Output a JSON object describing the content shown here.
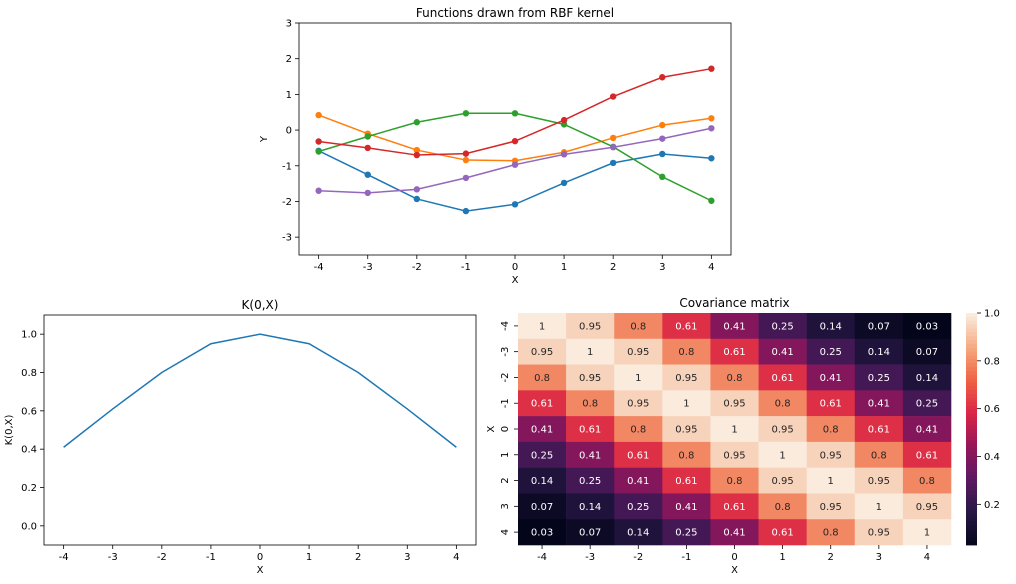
{
  "chart_data": [
    {
      "type": "line",
      "title": "Functions drawn from RBF kernel",
      "xlabel": "X",
      "ylabel": "Y",
      "xlim": [
        -4.4,
        4.4
      ],
      "ylim": [
        -3.5,
        3.0
      ],
      "xticks": [
        -4,
        -3,
        -2,
        -1,
        0,
        1,
        2,
        3,
        4
      ],
      "yticks": [
        -3,
        -2,
        -1,
        0,
        1,
        2,
        3
      ],
      "x": [
        -4,
        -3,
        -2,
        -1,
        0,
        1,
        2,
        3,
        4
      ],
      "markers": true,
      "series": [
        {
          "color": "#1f77b4",
          "values": [
            -0.58,
            -1.25,
            -1.93,
            -2.27,
            -2.08,
            -1.48,
            -0.92,
            -0.67,
            -0.79
          ]
        },
        {
          "color": "#ff7f0e",
          "values": [
            0.42,
            -0.1,
            -0.56,
            -0.84,
            -0.86,
            -0.62,
            -0.22,
            0.14,
            0.33
          ]
        },
        {
          "color": "#2ca02c",
          "values": [
            -0.6,
            -0.18,
            0.22,
            0.47,
            0.47,
            0.16,
            -0.47,
            -1.31,
            -1.98
          ]
        },
        {
          "color": "#d62728",
          "values": [
            -0.32,
            -0.5,
            -0.7,
            -0.66,
            -0.31,
            0.28,
            0.94,
            1.48,
            1.72
          ]
        },
        {
          "color": "#9467bd",
          "values": [
            -1.7,
            -1.76,
            -1.66,
            -1.34,
            -0.97,
            -0.68,
            -0.48,
            -0.24,
            0.05
          ]
        }
      ]
    },
    {
      "type": "line",
      "title": "K(0,X)",
      "xlabel": "X",
      "ylabel": "K(0,X)",
      "xlim": [
        -4.4,
        4.4
      ],
      "ylim": [
        -0.1,
        1.1
      ],
      "xticks": [
        -4,
        -3,
        -2,
        -1,
        0,
        1,
        2,
        3,
        4
      ],
      "yticks": [
        0.0,
        0.2,
        0.4,
        0.6,
        0.8,
        1.0
      ],
      "ytick_labels": [
        "0.0",
        "0.2",
        "0.4",
        "0.6",
        "0.8",
        "1.0"
      ],
      "x": [
        -4,
        -3,
        -2,
        -1,
        0,
        1,
        2,
        3,
        4
      ],
      "series": [
        {
          "color": "#1f77b4",
          "values": [
            0.41,
            0.61,
            0.8,
            0.95,
            1.0,
            0.95,
            0.8,
            0.61,
            0.41
          ]
        }
      ]
    },
    {
      "type": "heatmap",
      "title": "Covariance matrix",
      "xlabel": "X",
      "ylabel": "X",
      "x_categories": [
        "-4",
        "-3",
        "-2",
        "-1",
        "0",
        "1",
        "2",
        "3",
        "4"
      ],
      "y_categories": [
        "-4",
        "-3",
        "-2",
        "-1",
        "0",
        "1",
        "2",
        "3",
        "4"
      ],
      "colormap": "rocket",
      "colorbar_range": [
        0.03,
        1.0
      ],
      "colorbar_ticks": [
        0.2,
        0.4,
        0.6,
        0.8,
        1.0
      ],
      "colorbar_tick_labels": [
        "0.2",
        "0.4",
        "0.6",
        "0.8",
        "1.0"
      ],
      "cell_labels": [
        "1",
        "0.95",
        "0.8",
        "0.61",
        "0.41",
        "0.25",
        "0.14",
        "0.07",
        "0.03"
      ],
      "values": [
        [
          1,
          0.95,
          0.8,
          0.61,
          0.41,
          0.25,
          0.14,
          0.07,
          0.03
        ],
        [
          0.95,
          1,
          0.95,
          0.8,
          0.61,
          0.41,
          0.25,
          0.14,
          0.07
        ],
        [
          0.8,
          0.95,
          1,
          0.95,
          0.8,
          0.61,
          0.41,
          0.25,
          0.14
        ],
        [
          0.61,
          0.8,
          0.95,
          1,
          0.95,
          0.8,
          0.61,
          0.41,
          0.25
        ],
        [
          0.41,
          0.61,
          0.8,
          0.95,
          1,
          0.95,
          0.8,
          0.61,
          0.41
        ],
        [
          0.25,
          0.41,
          0.61,
          0.8,
          0.95,
          1,
          0.95,
          0.8,
          0.61
        ],
        [
          0.14,
          0.25,
          0.41,
          0.61,
          0.8,
          0.95,
          1,
          0.95,
          0.8
        ],
        [
          0.07,
          0.14,
          0.25,
          0.41,
          0.61,
          0.8,
          0.95,
          1,
          0.95
        ],
        [
          0.03,
          0.07,
          0.14,
          0.25,
          0.41,
          0.61,
          0.8,
          0.95,
          1
        ]
      ]
    }
  ]
}
